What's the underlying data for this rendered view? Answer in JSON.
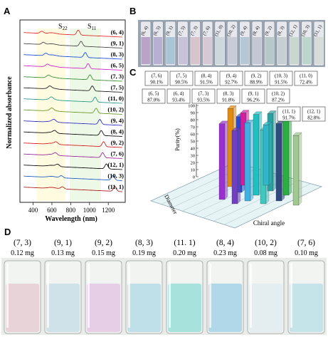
{
  "figure": {
    "panels": {
      "A": {
        "letter": "A",
        "ylabel": "Normalized absorbance",
        "xlabel": "Wavelength (nm)",
        "xticks": [
          "400",
          "600",
          "800",
          "1000",
          "1200"
        ],
        "s22_label": "S",
        "s22_sub": "22",
        "s11_label": "S",
        "s11_sub": "11",
        "spectra_labels": [
          "(6, 4)",
          "(9, 1)",
          "(8, 3)",
          "(6, 5)",
          "(7, 3)",
          "(7, 5)",
          "(11, 0)",
          "(10, 2)",
          "(9, 4)",
          "(8, 4)",
          "(9, 2)",
          "(7, 6)",
          "(12, 1)",
          "(10, 3)",
          "(11, 1)"
        ],
        "spectra_colors": [
          "#e0302e",
          "#4a4a4a",
          "#1f4fd6",
          "#d226c8",
          "#3a8f3a",
          "#222222",
          "#2a9a8a",
          "#6a9a2a",
          "#3030c0",
          "#111111",
          "#d02020",
          "#9a2a9a",
          "#111111",
          "#2060c0",
          "#b02020"
        ]
      },
      "B": {
        "letter": "B",
        "vial_labels": [
          "(6, 4)",
          "(6, 5)",
          "(9, 1)",
          "(7, 5)",
          "(7, 3)",
          "(7, 6)",
          "(11, 0)",
          "(10, 2)",
          "(9, 4)",
          "(8, 4)",
          "(9, 2)",
          "(8, 3)",
          "(12, 1)",
          "(10, 3)",
          "(11, 1)"
        ],
        "vial_colors": [
          "#b9a4c8",
          "#b8b0d0",
          "#a9c4d4",
          "#c8c2d8",
          "#d8c4cc",
          "#d7c8d6",
          "#cdd8dc",
          "#c8ccd8",
          "#b6c8d6",
          "#c4c8d4",
          "#b8c8c8",
          "#c6d0d4",
          "#c8d8d0",
          "#bcd6cc",
          "#d8dcd8"
        ]
      },
      "C": {
        "letter": "C",
        "zlabel": "Purity(%)",
        "zticks": [
          "100",
          "90",
          "80",
          "70",
          "60",
          "50",
          "40",
          "30",
          "20",
          "10",
          "0"
        ],
        "axis_label_diameter": "Diameter",
        "axis_label_chiral": "Chiral angle",
        "purity_boxes_top": [
          {
            "chirality": "(7, 6)",
            "purity": "90.1%"
          },
          {
            "chirality": "(7, 5)",
            "purity": "90.5%"
          },
          {
            "chirality": "(8, 4)",
            "purity": "91.5%"
          },
          {
            "chirality": "(9, 4)",
            "purity": "92.7%"
          },
          {
            "chirality": "(9, 2)",
            "purity": "88.9%"
          },
          {
            "chirality": "(10, 3)",
            "purity": "91.5%"
          },
          {
            "chirality": "(11, 0)",
            "purity": "72.4%"
          }
        ],
        "purity_boxes_bottom": [
          {
            "chirality": "(6, 5)",
            "purity": "87.0%"
          },
          {
            "chirality": "(6, 4)",
            "purity": "93.4%"
          },
          {
            "chirality": "(7, 3)",
            "purity": "93.5%"
          },
          {
            "chirality": "(8, 3)",
            "purity": "91.8%"
          },
          {
            "chirality": "(9, 1)",
            "purity": "96.2%"
          },
          {
            "chirality": "(10, 2)",
            "purity": "87.2%"
          }
        ],
        "purity_boxes_side": [
          {
            "chirality": "(11, 1)",
            "purity": "91.7%"
          },
          {
            "chirality": "(12, 1)",
            "purity": "82.8%"
          }
        ],
        "bar_colors": [
          "#9b30d0",
          "#e08a10",
          "#2a4ad0",
          "#d020a0",
          "#40b0e0",
          "#20c0c0",
          "#40c8c0",
          "#2aa0a0",
          "#304a80",
          "#2ab040",
          "#a0c890",
          "#7040c0",
          "#30b8c8"
        ]
      },
      "D": {
        "letter": "D",
        "beakers": [
          {
            "chirality": "(7, 3)",
            "mass": "0.12 mg",
            "color": "#e8d4d8"
          },
          {
            "chirality": "(9, 1)",
            "mass": "0.13 mg",
            "color": "#cfe2ea"
          },
          {
            "chirality": "(9, 2)",
            "mass": "0.15 mg",
            "color": "#e6cfe6"
          },
          {
            "chirality": "(8, 3)",
            "mass": "0.19 mg",
            "color": "#bfe0e8"
          },
          {
            "chirality": "(11. 1)",
            "mass": "0.20 mg",
            "color": "#a8e2dc"
          },
          {
            "chirality": "(8, 4)",
            "mass": "0.23 mg",
            "color": "#b0d8e8"
          },
          {
            "chirality": "(10, 2)",
            "mass": "0.08 mg",
            "color": "#e4eef0"
          },
          {
            "chirality": "(7, 6)",
            "mass": "0.10 mg",
            "color": "#c4e4ea"
          }
        ]
      }
    }
  }
}
